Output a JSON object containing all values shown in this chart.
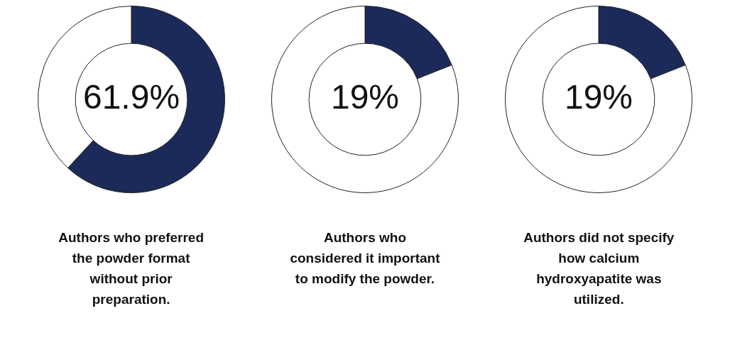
{
  "chart_data": [
    {
      "type": "donut",
      "title": "Authors who preferred the powder format without prior preparation.",
      "categories": [
        null,
        null
      ],
      "values": [
        61.9,
        38.1
      ],
      "colors": [
        "#1c2a5a",
        "#ffffff"
      ],
      "value_labels": [
        "61.9%",
        null
      ],
      "legend": false
    },
    {
      "type": "donut",
      "title": "Authors who considered it important to modify the powder.",
      "categories": [
        null,
        null
      ],
      "values": [
        19,
        81
      ],
      "colors": [
        "#1c2a5a",
        "#ffffff"
      ],
      "value_labels": [
        "19%",
        null
      ],
      "legend": false
    },
    {
      "type": "donut",
      "title": "Authors did not specify how calcium hydroxyapatite was utilized.",
      "categories": [
        null,
        null
      ],
      "values": [
        19,
        81
      ],
      "colors": [
        "#1c2a5a",
        "#ffffff"
      ],
      "value_labels": [
        "19%",
        null
      ],
      "legend": false
    }
  ]
}
